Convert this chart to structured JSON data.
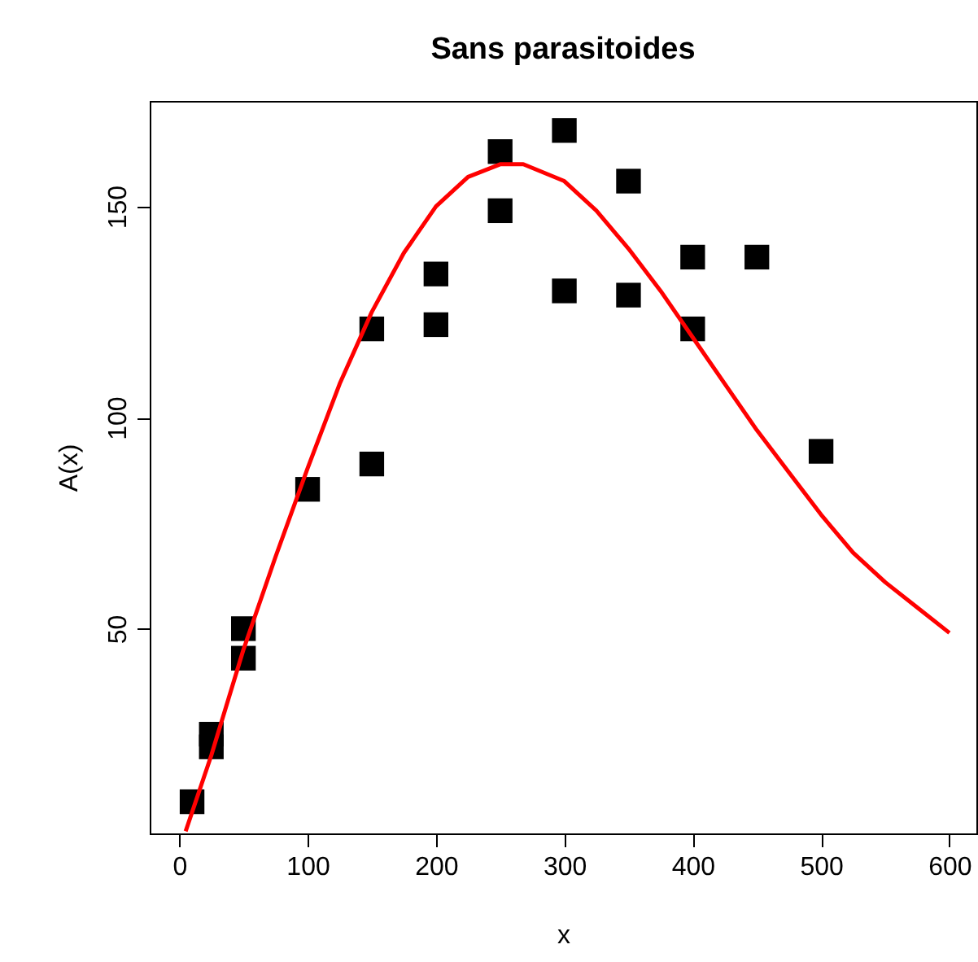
{
  "chart_data": {
    "type": "scatter",
    "title": "Sans parasitoides",
    "xlabel": "x",
    "ylabel": "A(x)",
    "xlim": [
      -23,
      621
    ],
    "ylim": [
      1.5,
      175
    ],
    "xticks": [
      0,
      100,
      200,
      300,
      400,
      500,
      600
    ],
    "yticks": [
      50,
      100,
      150
    ],
    "grid": false,
    "series": [
      {
        "color": "#000000",
        "marker": "square",
        "x": [
          10,
          25,
          25,
          50,
          50,
          100,
          150,
          150,
          200,
          200,
          250,
          250,
          300,
          300,
          350,
          350,
          400,
          400,
          450,
          500
        ],
        "values": [
          9,
          25,
          22,
          50,
          43,
          83,
          121,
          89,
          134,
          122,
          163,
          149,
          168,
          130,
          156,
          129,
          138,
          121,
          138,
          92
        ]
      },
      {
        "type": "line",
        "color": "#ff0000",
        "line_style": "solid",
        "x": [
          5,
          25,
          50,
          75,
          100,
          125,
          150,
          175,
          200,
          225,
          250,
          268,
          300,
          325,
          350,
          375,
          400,
          425,
          450,
          475,
          500,
          525,
          550,
          575,
          600
        ],
        "values": [
          2,
          20,
          45,
          67,
          88,
          108,
          125,
          139,
          150,
          157,
          160,
          160,
          156,
          149,
          140,
          130,
          119,
          108,
          97,
          87,
          77,
          68,
          61,
          55,
          49
        ]
      }
    ]
  }
}
